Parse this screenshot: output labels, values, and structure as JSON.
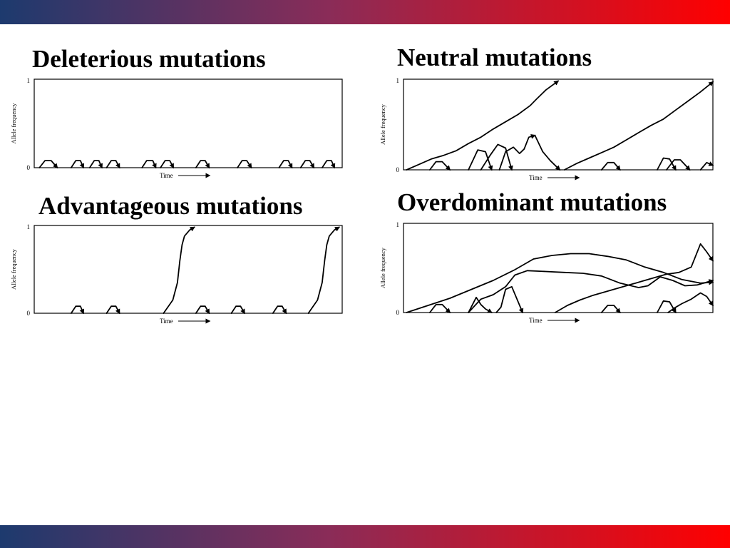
{
  "colors": {
    "band_start": "#1d3a6e",
    "band_mid": "#8a2c58",
    "band_end": "#ff0000",
    "ink": "#000000"
  },
  "chart_data": [
    {
      "type": "line",
      "title": "Deleterious mutations",
      "xlabel": "Time",
      "ylabel": "Allele frequency",
      "ytick_labels": [
        "0",
        "1"
      ],
      "xlim": [
        0,
        100
      ],
      "ylim": [
        0,
        1
      ],
      "grid": false,
      "series": [
        {
          "x": [
            1.7,
            3.5,
            5.5,
            7.5
          ],
          "y": [
            0,
            0.08,
            0.08,
            0
          ]
        },
        {
          "x": [
            12,
            13.5,
            15,
            16
          ],
          "y": [
            0,
            0.08,
            0.08,
            0
          ]
        },
        {
          "x": [
            18,
            19.5,
            21,
            22
          ],
          "y": [
            0,
            0.08,
            0.08,
            0
          ]
        },
        {
          "x": [
            23.5,
            25,
            26.5,
            27.7
          ],
          "y": [
            0,
            0.08,
            0.08,
            0
          ]
        },
        {
          "x": [
            35,
            36.5,
            38.5,
            39.5
          ],
          "y": [
            0,
            0.08,
            0.08,
            0
          ]
        },
        {
          "x": [
            41,
            42.5,
            44,
            45.2
          ],
          "y": [
            0,
            0.08,
            0.08,
            0
          ]
        },
        {
          "x": [
            52.5,
            54,
            55.5,
            56.8
          ],
          "y": [
            0,
            0.08,
            0.08,
            0
          ]
        },
        {
          "x": [
            66,
            67.5,
            69,
            70.5
          ],
          "y": [
            0,
            0.08,
            0.08,
            0
          ]
        },
        {
          "x": [
            79.5,
            81,
            82.5,
            83.7
          ],
          "y": [
            0,
            0.08,
            0.08,
            0
          ]
        },
        {
          "x": [
            86.5,
            88,
            89.5,
            90.8
          ],
          "y": [
            0,
            0.08,
            0.08,
            0
          ]
        },
        {
          "x": [
            93.5,
            95,
            96.5,
            97.5
          ],
          "y": [
            0,
            0.08,
            0.08,
            0
          ]
        }
      ]
    },
    {
      "type": "line",
      "title": "Neutral mutations",
      "xlabel": "Time",
      "ylabel": "Allele frequency",
      "ytick_labels": [
        "0",
        "1"
      ],
      "xlim": [
        0,
        100
      ],
      "ylim": [
        0,
        1
      ],
      "grid": false,
      "series": [
        {
          "x": [
            1,
            5,
            9,
            13,
            17,
            21,
            25,
            29,
            33,
            37,
            41,
            43,
            46,
            50
          ],
          "y": [
            0,
            0.06,
            0.12,
            0.16,
            0.21,
            0.29,
            0.36,
            0.45,
            0.53,
            0.61,
            0.71,
            0.78,
            0.88,
            0.98
          ]
        },
        {
          "x": [
            52,
            56,
            60,
            64,
            68,
            72,
            76,
            80,
            84,
            88,
            92,
            96,
            100
          ],
          "y": [
            0,
            0.07,
            0.13,
            0.19,
            0.25,
            0.33,
            0.41,
            0.49,
            0.56,
            0.66,
            0.76,
            0.86,
            0.97
          ]
        },
        {
          "x": [
            8.5,
            10.5,
            12.5,
            15
          ],
          "y": [
            0,
            0.09,
            0.09,
            0
          ]
        },
        {
          "x": [
            21,
            24,
            26.5,
            28.5
          ],
          "y": [
            0,
            0.22,
            0.2,
            0
          ]
        },
        {
          "x": [
            25,
            28,
            30.5,
            33,
            35
          ],
          "y": [
            0,
            0.16,
            0.28,
            0.24,
            0
          ]
        },
        {
          "x": [
            31,
            33,
            35.5,
            37.5,
            39,
            40.5,
            42.5
          ],
          "y": [
            0,
            0.2,
            0.25,
            0.18,
            0.23,
            0.36,
            0.38
          ]
        },
        {
          "x": [
            42.5,
            45,
            47.5,
            50.5
          ],
          "y": [
            0.38,
            0.2,
            0.1,
            0
          ]
        },
        {
          "x": [
            64,
            66,
            68,
            70
          ],
          "y": [
            0,
            0.08,
            0.08,
            0
          ]
        },
        {
          "x": [
            82,
            84,
            86,
            88
          ],
          "y": [
            0,
            0.13,
            0.12,
            0
          ]
        },
        {
          "x": [
            85,
            87.5,
            89.5,
            92.5
          ],
          "y": [
            0,
            0.11,
            0.11,
            0
          ]
        },
        {
          "x": [
            96,
            98,
            100
          ],
          "y": [
            0,
            0.08,
            0.05
          ]
        }
      ]
    },
    {
      "type": "line",
      "title": "Advantageous mutations",
      "xlabel": "Time",
      "ylabel": "Allele frequency",
      "ytick_labels": [
        "0",
        "1"
      ],
      "xlim": [
        0,
        100
      ],
      "ylim": [
        0,
        1
      ],
      "grid": false,
      "series": [
        {
          "x": [
            12,
            13.5,
            15,
            16
          ],
          "y": [
            0,
            0.08,
            0.08,
            0
          ]
        },
        {
          "x": [
            23.5,
            25,
            26.5,
            27.7
          ],
          "y": [
            0,
            0.08,
            0.08,
            0
          ]
        },
        {
          "x": [
            42,
            45,
            46.5,
            47.3,
            48,
            48.8,
            50.5,
            52
          ],
          "y": [
            0,
            0.15,
            0.35,
            0.6,
            0.78,
            0.88,
            0.95,
            0.98
          ]
        },
        {
          "x": [
            52.5,
            54,
            55.5,
            56.8
          ],
          "y": [
            0,
            0.08,
            0.08,
            0
          ]
        },
        {
          "x": [
            64,
            65.5,
            67,
            68.3
          ],
          "y": [
            0,
            0.08,
            0.08,
            0
          ]
        },
        {
          "x": [
            77.5,
            79,
            80.5,
            81.8
          ],
          "y": [
            0,
            0.08,
            0.08,
            0
          ]
        },
        {
          "x": [
            89,
            92,
            93.5,
            94.3,
            95,
            95.8,
            97.5,
            99
          ],
          "y": [
            0,
            0.15,
            0.35,
            0.6,
            0.78,
            0.88,
            0.95,
            0.98
          ]
        }
      ]
    },
    {
      "type": "line",
      "title": "Overdominant mutations",
      "xlabel": "Time",
      "ylabel": "Allele frequency",
      "ytick_labels": [
        "0",
        "1"
      ],
      "xlim": [
        0,
        100
      ],
      "ylim": [
        0,
        1
      ],
      "grid": false,
      "series": [
        {
          "x": [
            1,
            8,
            15,
            22,
            29,
            36,
            42,
            48,
            54,
            60,
            66,
            72,
            78,
            84,
            90,
            96,
            100
          ],
          "y": [
            0,
            0.08,
            0.16,
            0.26,
            0.36,
            0.48,
            0.6,
            0.64,
            0.66,
            0.66,
            0.63,
            0.59,
            0.51,
            0.45,
            0.37,
            0.33,
            0.34
          ]
        },
        {
          "x": [
            21,
            25,
            29,
            33,
            36,
            40,
            46,
            52,
            58,
            64,
            70,
            76,
            79,
            83,
            87,
            91,
            95,
            100
          ],
          "y": [
            0,
            0.15,
            0.2,
            0.29,
            0.42,
            0.47,
            0.46,
            0.45,
            0.44,
            0.41,
            0.33,
            0.28,
            0.3,
            0.4,
            0.36,
            0.3,
            0.31,
            0.36
          ]
        },
        {
          "x": [
            49,
            53,
            57,
            61,
            65,
            69,
            73,
            77,
            81,
            85,
            89,
            93,
            96,
            98,
            100
          ],
          "y": [
            0,
            0.08,
            0.14,
            0.19,
            0.23,
            0.27,
            0.31,
            0.35,
            0.39,
            0.43,
            0.45,
            0.51,
            0.77,
            0.68,
            0.58
          ]
        },
        {
          "x": [
            8.5,
            10.5,
            12.5,
            15
          ],
          "y": [
            0,
            0.09,
            0.09,
            0
          ]
        },
        {
          "x": [
            21,
            23.5,
            25,
            26.5,
            28.5
          ],
          "y": [
            0,
            0.17,
            0.09,
            0.04,
            0
          ]
        },
        {
          "x": [
            30,
            31.5,
            33,
            35,
            38.5
          ],
          "y": [
            0,
            0.06,
            0.26,
            0.29,
            0
          ]
        },
        {
          "x": [
            64,
            66,
            68,
            70
          ],
          "y": [
            0,
            0.08,
            0.08,
            0
          ]
        },
        {
          "x": [
            82,
            84,
            86,
            88
          ],
          "y": [
            0,
            0.13,
            0.12,
            0
          ]
        },
        {
          "x": [
            85.5,
            87.5,
            90,
            93,
            96,
            98,
            100
          ],
          "y": [
            0,
            0.05,
            0.1,
            0.15,
            0.22,
            0.18,
            0.08
          ]
        }
      ]
    }
  ]
}
